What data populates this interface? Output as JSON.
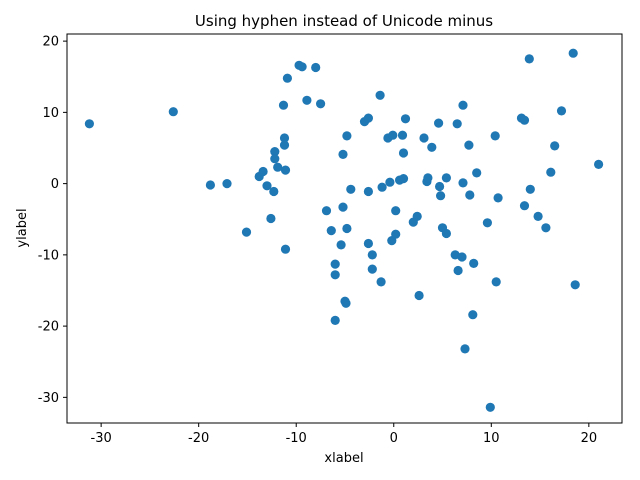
{
  "chart_data": {
    "type": "scatter",
    "title": "Using hyphen instead of Unicode minus",
    "xlabel": "xlabel",
    "ylabel": "ylabel",
    "xlim": [
      -33.5,
      23.4
    ],
    "ylim": [
      -33.6,
      21.0
    ],
    "xticks": [
      {
        "value": -30,
        "label": "-30"
      },
      {
        "value": -20,
        "label": "-20"
      },
      {
        "value": -10,
        "label": "-10"
      },
      {
        "value": 0,
        "label": "0"
      },
      {
        "value": 10,
        "label": "10"
      },
      {
        "value": 20,
        "label": "20"
      }
    ],
    "yticks": [
      {
        "value": 20,
        "label": "20"
      },
      {
        "value": 10,
        "label": "10"
      },
      {
        "value": 0,
        "label": "0"
      },
      {
        "value": -10,
        "label": "-10"
      },
      {
        "value": -20,
        "label": "-20"
      },
      {
        "value": -30,
        "label": "-30"
      }
    ],
    "grid": false,
    "marker_color": "#1f77b4",
    "points": [
      [
        -31.2,
        8.4
      ],
      [
        -22.6,
        10.1
      ],
      [
        -18.8,
        -0.2
      ],
      [
        -17.1,
        0.0
      ],
      [
        -15.1,
        -6.8
      ],
      [
        -13.8,
        1.0
      ],
      [
        -13.4,
        1.7
      ],
      [
        -13.0,
        -0.3
      ],
      [
        -12.6,
        -4.9
      ],
      [
        -12.3,
        -1.1
      ],
      [
        -12.2,
        4.5
      ],
      [
        -12.2,
        3.5
      ],
      [
        -11.9,
        2.3
      ],
      [
        -11.3,
        11.0
      ],
      [
        -11.2,
        6.4
      ],
      [
        -11.2,
        5.4
      ],
      [
        -11.1,
        -9.2
      ],
      [
        -11.1,
        1.9
      ],
      [
        -10.9,
        14.8
      ],
      [
        -9.7,
        16.6
      ],
      [
        -9.4,
        16.4
      ],
      [
        -8.9,
        11.7
      ],
      [
        -8.0,
        16.3
      ],
      [
        -7.5,
        11.2
      ],
      [
        -6.9,
        -3.8
      ],
      [
        -6.4,
        -6.6
      ],
      [
        -6.0,
        -11.3
      ],
      [
        -6.0,
        -12.8
      ],
      [
        -6.0,
        -19.2
      ],
      [
        -5.4,
        -8.6
      ],
      [
        -5.2,
        4.1
      ],
      [
        -5.2,
        -3.3
      ],
      [
        -5.0,
        -16.5
      ],
      [
        -4.9,
        -16.8
      ],
      [
        -4.8,
        6.7
      ],
      [
        -4.8,
        -6.3
      ],
      [
        -4.4,
        -0.8
      ],
      [
        -3.0,
        8.7
      ],
      [
        -2.6,
        9.2
      ],
      [
        -2.6,
        -1.1
      ],
      [
        -2.6,
        -8.4
      ],
      [
        -2.2,
        -10.0
      ],
      [
        -2.2,
        -12.0
      ],
      [
        -1.4,
        12.4
      ],
      [
        -1.3,
        -13.8
      ],
      [
        -1.2,
        -0.5
      ],
      [
        -0.6,
        6.4
      ],
      [
        -0.4,
        0.2
      ],
      [
        -0.2,
        -8.0
      ],
      [
        -0.1,
        6.8
      ],
      [
        0.2,
        -7.1
      ],
      [
        0.2,
        -3.8
      ],
      [
        0.6,
        0.5
      ],
      [
        0.9,
        6.8
      ],
      [
        1.0,
        4.3
      ],
      [
        1.0,
        0.7
      ],
      [
        1.2,
        9.1
      ],
      [
        2.0,
        -5.4
      ],
      [
        2.4,
        -4.6
      ],
      [
        2.6,
        -15.7
      ],
      [
        3.1,
        6.4
      ],
      [
        3.4,
        0.3
      ],
      [
        3.5,
        0.8
      ],
      [
        3.9,
        5.1
      ],
      [
        4.6,
        8.5
      ],
      [
        4.7,
        -0.4
      ],
      [
        4.8,
        -1.7
      ],
      [
        5.0,
        -6.2
      ],
      [
        5.4,
        -7.0
      ],
      [
        5.4,
        0.8
      ],
      [
        6.3,
        -10.0
      ],
      [
        6.5,
        8.4
      ],
      [
        6.6,
        -12.2
      ],
      [
        7.0,
        -10.3
      ],
      [
        7.1,
        11.0
      ],
      [
        7.1,
        0.1
      ],
      [
        7.3,
        -23.2
      ],
      [
        7.7,
        5.4
      ],
      [
        7.8,
        -1.6
      ],
      [
        8.1,
        -18.4
      ],
      [
        8.2,
        -11.2
      ],
      [
        8.5,
        1.5
      ],
      [
        9.6,
        -5.5
      ],
      [
        9.9,
        -31.4
      ],
      [
        10.4,
        6.7
      ],
      [
        10.5,
        -13.8
      ],
      [
        10.7,
        -2.0
      ],
      [
        13.1,
        9.2
      ],
      [
        13.4,
        8.9
      ],
      [
        13.4,
        -3.1
      ],
      [
        13.9,
        17.5
      ],
      [
        14.0,
        -0.8
      ],
      [
        14.8,
        -4.6
      ],
      [
        15.6,
        -6.2
      ],
      [
        16.1,
        1.6
      ],
      [
        16.5,
        5.3
      ],
      [
        17.2,
        10.2
      ],
      [
        18.4,
        18.3
      ],
      [
        18.6,
        -14.2
      ],
      [
        21.0,
        2.7
      ]
    ]
  }
}
